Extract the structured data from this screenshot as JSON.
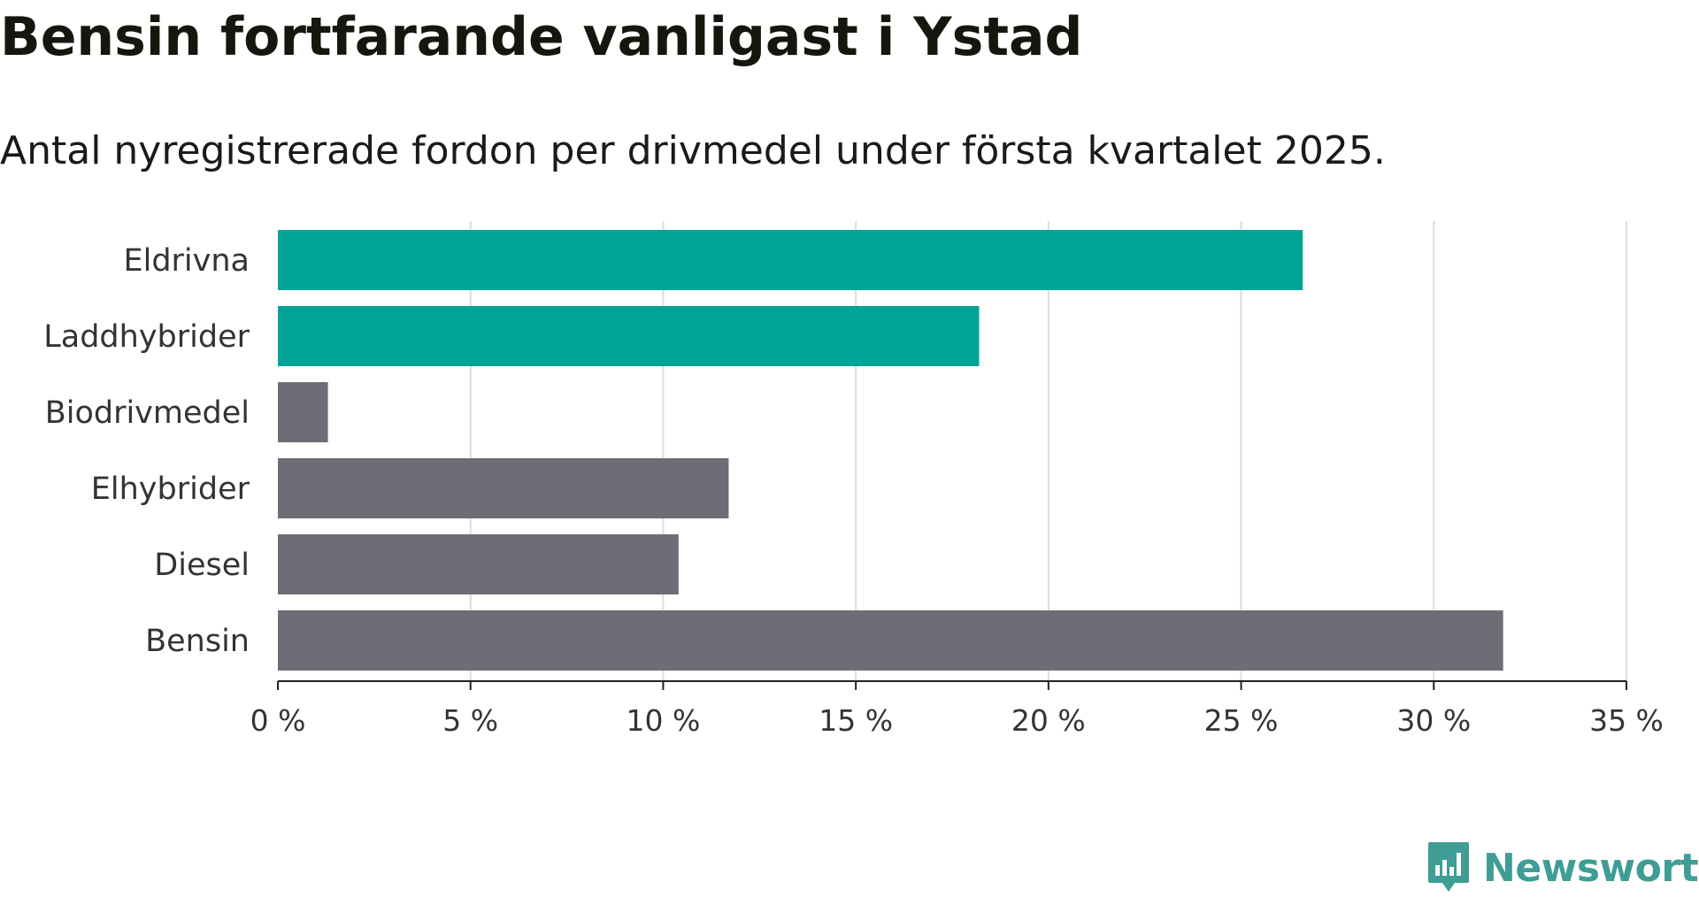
{
  "chart_data": {
    "type": "bar",
    "orientation": "horizontal",
    "title": "Bensin fortfarande vanligast i Ystad",
    "subtitle": "Antal nyregistrerade fordon per drivmedel under första kvartalet 2025.",
    "categories": [
      "Eldrivna",
      "Laddhybrider",
      "Biodrivmedel",
      "Elhybrider",
      "Diesel",
      "Bensin"
    ],
    "values": [
      26.6,
      18.2,
      1.3,
      11.7,
      10.4,
      31.8
    ],
    "bar_colors": [
      "#00a398",
      "#00a398",
      "#6e6d75",
      "#6e6d75",
      "#6e6d75",
      "#6e6d75"
    ],
    "x_ticks": [
      {
        "value": 0,
        "label": "0 %"
      },
      {
        "value": 5,
        "label": "5 %"
      },
      {
        "value": 10,
        "label": "10 %"
      },
      {
        "value": 15,
        "label": "15 %"
      },
      {
        "value": 20,
        "label": "20 %"
      },
      {
        "value": 25,
        "label": "25 %"
      },
      {
        "value": 30,
        "label": "30 %"
      },
      {
        "value": 35,
        "label": "35 %"
      }
    ],
    "xlim": [
      0,
      35
    ],
    "xlabel": "",
    "ylabel": "",
    "grid": "vertical",
    "legend": "none"
  },
  "brand": {
    "name": "Newsworthy",
    "icon": "newsworthy-logo-icon",
    "color": "#3f9d95"
  }
}
